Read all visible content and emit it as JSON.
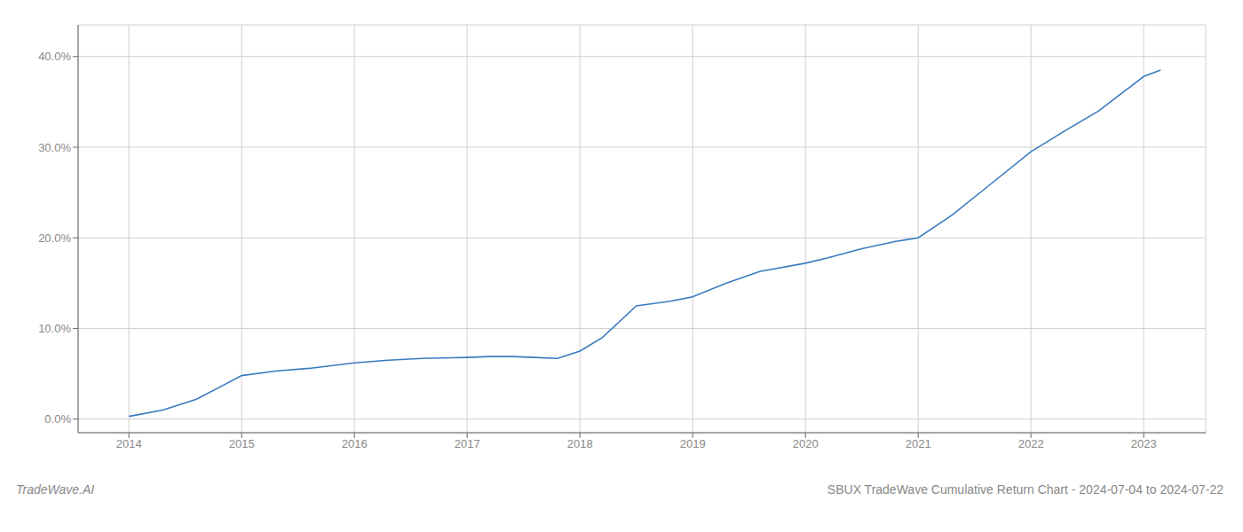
{
  "chart_data": {
    "type": "line",
    "title": "SBUX TradeWave Cumulative Return Chart - 2024-07-04 to 2024-07-22",
    "annotations": [
      "TradeWave.AI"
    ],
    "x": [
      2014.0,
      2014.3,
      2014.6,
      2015.0,
      2015.3,
      2015.6,
      2016.0,
      2016.3,
      2016.6,
      2017.0,
      2017.2,
      2017.4,
      2017.6,
      2017.8,
      2018.0,
      2018.2,
      2018.5,
      2018.8,
      2019.0,
      2019.3,
      2019.6,
      2020.0,
      2020.2,
      2020.5,
      2020.8,
      2021.0,
      2021.3,
      2021.6,
      2022.0,
      2022.3,
      2022.6,
      2023.0,
      2023.15
    ],
    "values": [
      0.003,
      0.01,
      0.022,
      0.048,
      0.053,
      0.056,
      0.062,
      0.065,
      0.067,
      0.068,
      0.069,
      0.069,
      0.068,
      0.067,
      0.075,
      0.09,
      0.125,
      0.13,
      0.135,
      0.15,
      0.163,
      0.172,
      0.178,
      0.188,
      0.196,
      0.2,
      0.225,
      0.255,
      0.295,
      0.318,
      0.34,
      0.378,
      0.385
    ],
    "color": "#3a7bbf",
    "xlim": [
      2013.55,
      2023.55
    ],
    "xticks": [
      2014,
      2015,
      2016,
      2017,
      2018,
      2019,
      2020,
      2021,
      2022,
      2023
    ],
    "ylim": [
      -0.015,
      0.435
    ],
    "yticks": [
      {
        "value": 0.0,
        "label": "0.0%"
      },
      {
        "value": 0.1,
        "label": "10.0%"
      },
      {
        "value": 0.2,
        "label": "20.0%"
      },
      {
        "value": 0.3,
        "label": "30.0%"
      },
      {
        "value": 0.4,
        "label": "40.0%"
      }
    ],
    "grid": true
  }
}
